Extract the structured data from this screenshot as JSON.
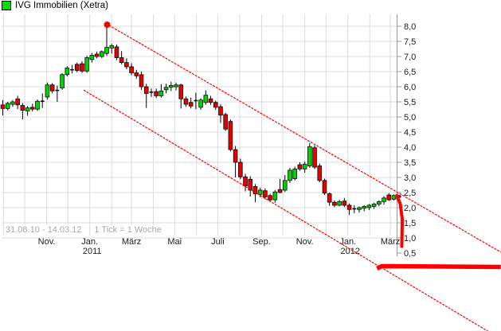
{
  "window": {
    "title": "IVG Immobilien (Xetra)",
    "icon_color": "#00dd00"
  },
  "footer": {
    "date_range": "31.08.10 - 14.03.12",
    "tick_info": "1 Tick = 1 Woche"
  },
  "chart_data": {
    "type": "candlestick",
    "title": "IVG Immobilien (Xetra)",
    "instrument": "IVG Immobilien",
    "exchange": "Xetra",
    "period": {
      "from": "31.08.10",
      "to": "14.03.12",
      "interval": "1 Woche"
    },
    "colors": {
      "up": "#00d300",
      "down": "#e60000",
      "doji": "#000000",
      "wick": "#000000",
      "body_border": "#000000",
      "grid": "#dcdcdc",
      "axis": "#9a9a9a",
      "label": "#1a1a1a",
      "trend": "#ff0000",
      "annotation": "#ff0000",
      "peak_marker": "#ff0000"
    },
    "y_axis": {
      "side": "right",
      "ylim": [
        0.3,
        8.3
      ],
      "ticks": [
        {
          "value": 8.0,
          "label": "8,0"
        },
        {
          "value": 7.5,
          "label": "7,5"
        },
        {
          "value": 7.0,
          "label": "7,0"
        },
        {
          "value": 6.5,
          "label": "6,5"
        },
        {
          "value": 6.0,
          "label": "6,0"
        },
        {
          "value": 5.5,
          "label": "5,5"
        },
        {
          "value": 5.0,
          "label": "5,0"
        },
        {
          "value": 4.5,
          "label": "4,5"
        },
        {
          "value": 4.0,
          "label": "4,0"
        },
        {
          "value": 3.5,
          "label": "3,5"
        },
        {
          "value": 3.0,
          "label": "3,0"
        },
        {
          "value": 2.5,
          "label": "2,5"
        },
        {
          "value": 2.0,
          "label": "2,0"
        },
        {
          "value": 1.5,
          "label": "1,5"
        },
        {
          "value": 1.0,
          "label": "1,0"
        },
        {
          "value": 0.5,
          "label": "0,5"
        }
      ]
    },
    "x_axis": {
      "month_week_offsets": [
        0.14,
        4.43,
        8.86,
        13.14,
        17.57,
        22.0,
        26.0,
        30.43,
        34.71,
        39.14,
        43.43,
        47.86,
        52.29,
        56.57,
        61.0,
        65.29,
        69.71,
        74.14,
        78.29
      ],
      "labels": [
        {
          "month_index": 2,
          "label": "Nov."
        },
        {
          "month_index": 4,
          "label": "Jan.",
          "sub": "2011"
        },
        {
          "month_index": 6,
          "label": "März"
        },
        {
          "month_index": 8,
          "label": "Mai"
        },
        {
          "month_index": 10,
          "label": "Juli"
        },
        {
          "month_index": 12,
          "label": "Sep."
        },
        {
          "month_index": 14,
          "label": "Nov."
        },
        {
          "month_index": 16,
          "label": "Jan.",
          "sub": "2012"
        },
        {
          "month_index": 18,
          "label": "März"
        }
      ]
    },
    "weekly_ohlc": [
      [
        5.4,
        5.56,
        5.05,
        5.28
      ],
      [
        5.28,
        5.5,
        5.22,
        5.45
      ],
      [
        5.42,
        5.56,
        5.34,
        5.5
      ],
      [
        5.6,
        5.7,
        5.26,
        5.4
      ],
      [
        5.38,
        5.46,
        4.92,
        5.22
      ],
      [
        5.2,
        5.36,
        5.04,
        5.3
      ],
      [
        5.32,
        5.44,
        5.18,
        5.26
      ],
      [
        5.26,
        5.58,
        5.2,
        5.52
      ],
      [
        5.52,
        5.78,
        5.3,
        5.54
      ],
      [
        5.66,
        6.14,
        5.58,
        6.06
      ],
      [
        6.06,
        6.12,
        5.78,
        5.86
      ],
      [
        5.88,
        6.04,
        5.5,
        5.9
      ],
      [
        5.96,
        6.45,
        5.9,
        6.4
      ],
      [
        6.4,
        6.68,
        6.34,
        6.62
      ],
      [
        6.58,
        6.72,
        6.44,
        6.56
      ],
      [
        6.74,
        6.8,
        6.48,
        6.54
      ],
      [
        6.76,
        6.84,
        6.46,
        6.52
      ],
      [
        6.52,
        7.02,
        6.46,
        6.96
      ],
      [
        6.9,
        7.12,
        6.8,
        7.04
      ],
      [
        7.08,
        7.16,
        6.94,
        7.0
      ],
      [
        7.0,
        7.2,
        6.95,
        7.16
      ],
      [
        7.1,
        8.0,
        7.02,
        7.3
      ],
      [
        7.28,
        7.42,
        7.1,
        7.36
      ],
      [
        7.32,
        7.4,
        6.88,
        6.96
      ],
      [
        6.96,
        7.18,
        6.74,
        6.8
      ],
      [
        6.8,
        6.94,
        6.58,
        6.66
      ],
      [
        6.66,
        6.78,
        6.38,
        6.46
      ],
      [
        6.46,
        6.56,
        6.26,
        6.36
      ],
      [
        6.4,
        6.5,
        5.9,
        6.0
      ],
      [
        6.0,
        6.1,
        5.3,
        5.78
      ],
      [
        5.8,
        5.94,
        5.66,
        5.84
      ],
      [
        5.84,
        5.94,
        5.62,
        5.7
      ],
      [
        5.7,
        6.08,
        5.64,
        5.86
      ],
      [
        5.9,
        6.1,
        5.78,
        5.98
      ],
      [
        5.98,
        6.16,
        5.86,
        6.04
      ],
      [
        6.0,
        6.14,
        5.88,
        6.06
      ],
      [
        6.06,
        6.1,
        5.28,
        5.6
      ],
      [
        5.6,
        5.68,
        5.34,
        5.42
      ],
      [
        5.48,
        5.64,
        5.28,
        5.36
      ],
      [
        5.54,
        5.8,
        5.26,
        5.56
      ],
      [
        5.32,
        5.62,
        5.24,
        5.56
      ],
      [
        5.48,
        5.88,
        5.4,
        5.72
      ],
      [
        5.6,
        5.7,
        5.4,
        5.48
      ],
      [
        5.48,
        5.54,
        5.24,
        5.32
      ],
      [
        5.34,
        5.42,
        4.8,
        5.06
      ],
      [
        5.08,
        5.14,
        4.54,
        4.6
      ],
      [
        4.85,
        4.92,
        3.86,
        3.92
      ],
      [
        3.92,
        4.04,
        3.0,
        3.5
      ],
      [
        3.5,
        3.62,
        2.94,
        3.02
      ],
      [
        3.02,
        3.12,
        2.54,
        2.72
      ],
      [
        2.94,
        3.04,
        2.37,
        2.58
      ],
      [
        2.7,
        2.78,
        2.18,
        2.46
      ],
      [
        2.44,
        2.66,
        2.34,
        2.58
      ],
      [
        2.56,
        2.64,
        2.28,
        2.36
      ],
      [
        2.4,
        2.46,
        2.2,
        2.26
      ],
      [
        2.26,
        2.58,
        2.16,
        2.52
      ],
      [
        2.6,
        2.95,
        2.48,
        2.5
      ],
      [
        2.58,
        3.08,
        2.52,
        2.9
      ],
      [
        2.9,
        3.32,
        2.82,
        3.24
      ],
      [
        2.96,
        3.36,
        2.9,
        3.28
      ],
      [
        3.42,
        3.5,
        3.22,
        3.28
      ],
      [
        3.28,
        3.52,
        3.16,
        3.44
      ],
      [
        3.38,
        4.14,
        3.32,
        4.02
      ],
      [
        3.98,
        4.06,
        3.28,
        3.34
      ],
      [
        3.38,
        3.46,
        2.84,
        2.9
      ],
      [
        2.9,
        2.96,
        2.42,
        2.48
      ],
      [
        2.46,
        2.5,
        2.06,
        2.18
      ],
      [
        2.18,
        2.24,
        2.02,
        2.08
      ],
      [
        2.08,
        2.26,
        2.04,
        2.2
      ],
      [
        2.22,
        2.32,
        2.02,
        2.08
      ],
      [
        2.08,
        2.14,
        1.76,
        1.94
      ],
      [
        1.96,
        2.08,
        1.82,
        1.98
      ],
      [
        1.94,
        2.04,
        1.84,
        2.0
      ],
      [
        1.98,
        2.08,
        1.88,
        2.04
      ],
      [
        2.0,
        2.12,
        1.92,
        2.08
      ],
      [
        2.04,
        2.16,
        1.96,
        2.12
      ],
      [
        2.12,
        2.24,
        2.04,
        2.2
      ],
      [
        2.2,
        2.38,
        2.1,
        2.32
      ],
      [
        2.42,
        2.48,
        2.22,
        2.26
      ],
      [
        2.28,
        2.44,
        2.24,
        2.4
      ],
      [
        2.4,
        2.42,
        2.28,
        2.34
      ]
    ],
    "annotations": {
      "peak_marker": {
        "week": 21,
        "price": 8.0
      },
      "channel_upper": {
        "from": {
          "week": 21.46,
          "price": 8.03
        },
        "to": {
          "week": 100.6,
          "price": 0.53
        }
      },
      "channel_lower": {
        "from": {
          "week": 16.33,
          "price": 5.89
        },
        "to": {
          "week": 100.6,
          "price": -2.34
        }
      },
      "crash_line": {
        "points": [
          [
            79.6,
            2.4
          ],
          [
            80.3,
            2.12
          ],
          [
            80.7,
            1.6
          ],
          [
            80.6,
            0.72
          ]
        ],
        "thickness": 4
      },
      "floor_line": {
        "week_from": 75.6,
        "week_to": 100.6,
        "price": 0.04,
        "thickness": 5.5
      }
    }
  }
}
